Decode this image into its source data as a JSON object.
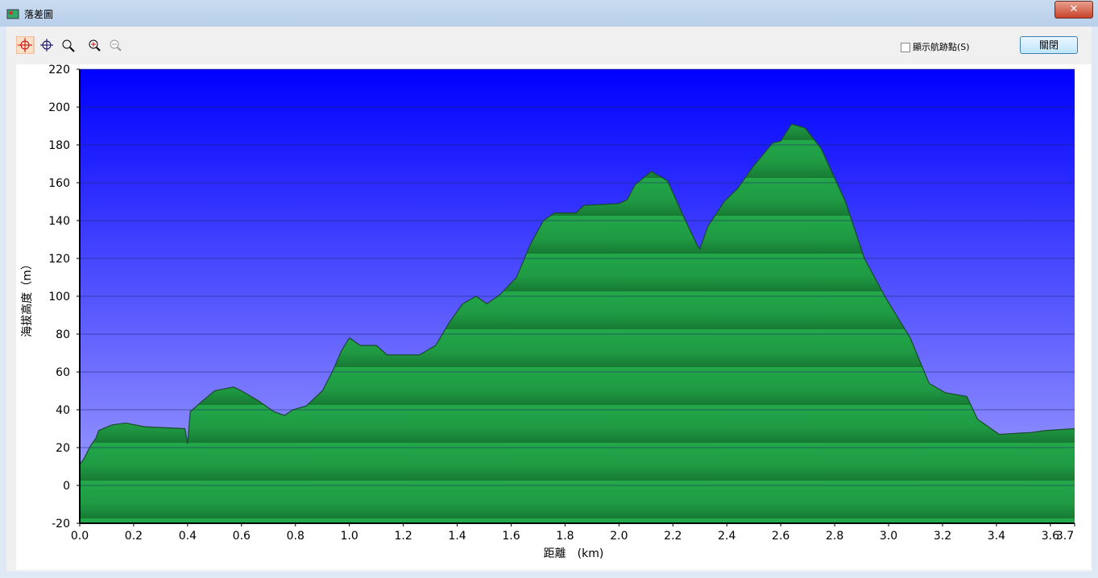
{
  "window": {
    "title": "落差圖"
  },
  "toolbar": {
    "checkbox_label": "顯示航跡點(S)",
    "button_label": "關閉"
  },
  "chart_data": {
    "type": "area",
    "xlabel": "距離　(km)",
    "ylabel": "海拔高度（m）",
    "x": [
      0,
      0.015,
      0.04,
      0.06,
      0.07,
      0.12,
      0.17,
      0.24,
      0.39,
      0.4,
      0.41,
      0.45,
      0.5,
      0.57,
      0.6,
      0.66,
      0.72,
      0.76,
      0.79,
      0.84,
      0.9,
      0.94,
      0.97,
      1.0,
      1.04,
      1.1,
      1.14,
      1.26,
      1.32,
      1.37,
      1.42,
      1.47,
      1.51,
      1.56,
      1.62,
      1.67,
      1.72,
      1.76,
      1.84,
      1.87,
      2.0,
      2.03,
      2.06,
      2.12,
      2.18,
      2.24,
      2.29,
      2.3,
      2.33,
      2.39,
      2.44,
      2.5,
      2.57,
      2.6,
      2.64,
      2.69,
      2.75,
      2.84,
      2.91,
      2.99,
      3.08,
      3.15,
      3.21,
      3.29,
      3.33,
      3.41,
      3.53,
      3.58,
      3.69
    ],
    "values": [
      11,
      14,
      21,
      25,
      29,
      32,
      33,
      31,
      30,
      22,
      39,
      44,
      50,
      52,
      50,
      45,
      39,
      37,
      40,
      42,
      50,
      61,
      71,
      78,
      74,
      74,
      69,
      69,
      74,
      86,
      96,
      100,
      96,
      101,
      110,
      127,
      140,
      144,
      144,
      148,
      149,
      151,
      159,
      166,
      161,
      142,
      127,
      125,
      137,
      150,
      157,
      169,
      181,
      182,
      191,
      189,
      178,
      150,
      120,
      99,
      78,
      54,
      49,
      47,
      35,
      27,
      28,
      29,
      30
    ],
    "color": "#1f9e45",
    "xlim": [
      0,
      3.69
    ],
    "ylim": [
      -20,
      220
    ],
    "xticks": [
      {
        "value": 0,
        "label": "0.0"
      },
      0.2,
      0.4,
      0.6,
      0.8,
      {
        "value": 1,
        "label": "1.0"
      },
      1.2,
      1.4,
      1.6,
      1.8,
      {
        "value": 2,
        "label": "2.0"
      },
      2.2,
      2.4,
      2.6,
      2.8,
      {
        "value": 3,
        "label": "3.0"
      },
      3.2,
      3.4,
      3.6,
      {
        "value": 3.69,
        "label": "3.7"
      }
    ],
    "yticks": [
      -20,
      0,
      20,
      40,
      60,
      80,
      100,
      120,
      140,
      160,
      180,
      200,
      220
    ],
    "grid": true
  }
}
